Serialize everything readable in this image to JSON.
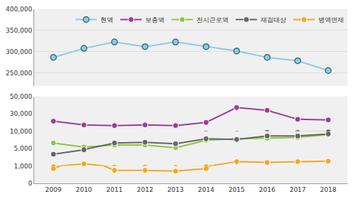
{
  "chart_data": [
    {
      "type": "line",
      "categories": [
        "2009",
        "2010",
        "2011",
        "2012",
        "2013",
        "2014",
        "2015",
        "2016",
        "2017",
        "2018"
      ],
      "series": [
        {
          "name": "현역",
          "color": "#8fcbe3",
          "marker": "circle",
          "values": [
            287000,
            308000,
            323000,
            312000,
            323000,
            312000,
            302000,
            287000,
            279000,
            256000
          ]
        }
      ],
      "ylim": [
        220000,
        400000
      ],
      "yticks": [
        {
          "value": 250000,
          "label": "250,000"
        },
        {
          "value": 300000,
          "label": "300,000"
        },
        {
          "value": 350000,
          "label": "350,000"
        },
        {
          "value": 400000,
          "label": "400,000"
        }
      ],
      "grid": true,
      "legend": "upper right"
    },
    {
      "type": "line",
      "categories": [
        "2009",
        "2010",
        "2011",
        "2012",
        "2013",
        "2014",
        "2015",
        "2016",
        "2017",
        "2018"
      ],
      "series": [
        {
          "name": "보충역",
          "color": "#9b3d98",
          "marker": "circle",
          "values": [
            21400,
            17100,
            16400,
            17100,
            16400,
            20000,
            37100,
            33900,
            23600,
            22900
          ]
        },
        {
          "name": "전시근로역",
          "color": "#8cc63f",
          "marker": "circle",
          "values": [
            6600,
            5400,
            6000,
            6000,
            5200,
            7400,
            7800,
            8000,
            8200,
            9000
          ]
        },
        {
          "name": "재검대상",
          "color": "#666666",
          "marker": "circle",
          "values": [
            3700,
            4700,
            6600,
            6800,
            6400,
            7800,
            7600,
            8600,
            8600,
            9200
          ]
        },
        {
          "name": "병역면제",
          "color": "#f5a623",
          "marker": "circle",
          "values": [
            850,
            1500,
            750,
            750,
            700,
            850,
            2000,
            1800,
            2000,
            2100
          ]
        }
      ],
      "ylim": [
        0,
        50000
      ],
      "yticks": [
        0,
        {
          "value": 1000,
          "label": "1,000"
        },
        {
          "value": 5000,
          "label": "5,000"
        },
        {
          "value": 10000,
          "label": "10,000"
        },
        {
          "value": 30000,
          "label": "30,000"
        },
        {
          "value": 50000,
          "label": "50,000"
        }
      ],
      "grid": true
    }
  ]
}
